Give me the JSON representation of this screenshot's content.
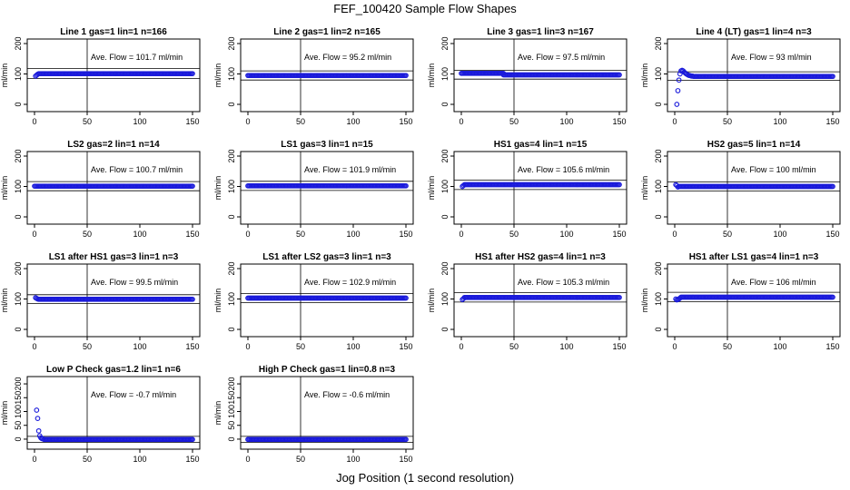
{
  "title": "FEF_100420  Sample Flow Shapes",
  "xlabel": "Jog Position (1 second resolution)",
  "chart_data": [
    {
      "type": "scatter",
      "title": "Line 1 gas=1 lin=1 n=166",
      "ylabel": "ml/min",
      "annotation": "Ave. Flow =  101.7  ml/min",
      "xlim": [
        0,
        150
      ],
      "ylim": [
        0,
        200
      ],
      "xticks": [
        0,
        50,
        100,
        150
      ],
      "yticks": [
        0,
        100,
        200
      ],
      "hlines": [
        85,
        118
      ],
      "vline": 50,
      "series": [
        {
          "x": [
            1,
            2,
            3
          ],
          "y": [
            93,
            96,
            99
          ]
        },
        {
          "x_range": [
            4,
            150
          ],
          "y": 101
        }
      ]
    },
    {
      "type": "scatter",
      "title": "Line 2 gas=1 lin=2 n=165",
      "ylabel": "ml/min",
      "annotation": "Ave. Flow =  95.2  ml/min",
      "xlim": [
        0,
        150
      ],
      "ylim": [
        0,
        200
      ],
      "xticks": [
        0,
        50,
        100,
        150
      ],
      "yticks": [
        0,
        100,
        200
      ],
      "hlines": [
        80,
        110
      ],
      "vline": 50,
      "series": [
        {
          "x_range": [
            0,
            150
          ],
          "y": 95
        }
      ]
    },
    {
      "type": "scatter",
      "title": "Line 3 gas=1 lin=3 n=167",
      "ylabel": "ml/min",
      "annotation": "Ave. Flow =  97.5  ml/min",
      "xlim": [
        0,
        150
      ],
      "ylim": [
        0,
        200
      ],
      "xticks": [
        0,
        50,
        100,
        150
      ],
      "yticks": [
        0,
        100,
        200
      ],
      "hlines": [
        83,
        112
      ],
      "vline": 50,
      "series": [
        {
          "x_range": [
            0,
            40
          ],
          "y": 102
        },
        {
          "x_range": [
            40,
            150
          ],
          "y": 97
        }
      ]
    },
    {
      "type": "scatter",
      "title": "Line 4 (LT) gas=1 lin=4 n=3",
      "ylabel": "ml/min",
      "annotation": "Ave. Flow =  93  ml/min",
      "xlim": [
        0,
        150
      ],
      "ylim": [
        0,
        200
      ],
      "xticks": [
        0,
        50,
        100,
        150
      ],
      "yticks": [
        0,
        100,
        200
      ],
      "hlines": [
        79,
        107
      ],
      "vline": 50,
      "series": [
        {
          "x": [
            2,
            3
          ],
          "y": [
            0,
            45
          ]
        },
        {
          "x": [
            4,
            5,
            6,
            7,
            8,
            9,
            10,
            11,
            12,
            13,
            14,
            15,
            16,
            17,
            18,
            19,
            20
          ],
          "y": [
            80,
            100,
            110,
            112,
            110,
            106,
            103,
            100,
            98,
            96,
            95,
            94,
            93,
            93,
            92,
            92,
            92
          ]
        },
        {
          "x_range": [
            20,
            150
          ],
          "y": 92
        }
      ]
    },
    {
      "type": "scatter",
      "title": "LS2 gas=2 lin=1 n=14",
      "ylabel": "ml/min",
      "annotation": "Ave. Flow =  100.7  ml/min",
      "xlim": [
        0,
        150
      ],
      "ylim": [
        0,
        200
      ],
      "xticks": [
        0,
        50,
        100,
        150
      ],
      "yticks": [
        0,
        100,
        200
      ],
      "hlines": [
        86,
        116
      ],
      "vline": 50,
      "series": [
        {
          "x_range": [
            0,
            150
          ],
          "y": 101
        }
      ]
    },
    {
      "type": "scatter",
      "title": "LS1 gas=3 lin=1 n=15",
      "ylabel": "ml/min",
      "annotation": "Ave. Flow =  101.9  ml/min",
      "xlim": [
        0,
        150
      ],
      "ylim": [
        0,
        200
      ],
      "xticks": [
        0,
        50,
        100,
        150
      ],
      "yticks": [
        0,
        100,
        200
      ],
      "hlines": [
        87,
        117
      ],
      "vline": 50,
      "series": [
        {
          "x_range": [
            0,
            150
          ],
          "y": 102
        }
      ]
    },
    {
      "type": "scatter",
      "title": "HS1 gas=4 lin=1 n=15",
      "ylabel": "ml/min",
      "annotation": "Ave. Flow =  105.6  ml/min",
      "xlim": [
        0,
        150
      ],
      "ylim": [
        0,
        200
      ],
      "xticks": [
        0,
        50,
        100,
        150
      ],
      "yticks": [
        0,
        100,
        200
      ],
      "hlines": [
        90,
        121
      ],
      "vline": 50,
      "series": [
        {
          "x": [
            1,
            2
          ],
          "y": [
            100,
            103
          ]
        },
        {
          "x_range": [
            3,
            150
          ],
          "y": 106
        }
      ]
    },
    {
      "type": "scatter",
      "title": "HS2 gas=5 lin=1 n=14",
      "ylabel": "ml/min",
      "annotation": "Ave. Flow =  100  ml/min",
      "xlim": [
        0,
        150
      ],
      "ylim": [
        0,
        200
      ],
      "xticks": [
        0,
        50,
        100,
        150
      ],
      "yticks": [
        0,
        100,
        200
      ],
      "hlines": [
        85,
        115
      ],
      "vline": 50,
      "series": [
        {
          "x": [
            1,
            2,
            3
          ],
          "y": [
            106,
            103,
            98
          ]
        },
        {
          "x_range": [
            4,
            150
          ],
          "y": 100
        }
      ]
    },
    {
      "type": "scatter",
      "title": "LS1 after HS1 gas=3 lin=1 n=3",
      "ylabel": "ml/min",
      "annotation": "Ave. Flow =  99.5  ml/min",
      "xlim": [
        0,
        150
      ],
      "ylim": [
        0,
        200
      ],
      "xticks": [
        0,
        50,
        100,
        150
      ],
      "yticks": [
        0,
        100,
        200
      ],
      "hlines": [
        85,
        114
      ],
      "vline": 50,
      "series": [
        {
          "x": [
            1,
            2,
            3
          ],
          "y": [
            104,
            102,
            100
          ]
        },
        {
          "x_range": [
            4,
            150
          ],
          "y": 99
        }
      ]
    },
    {
      "type": "scatter",
      "title": "LS1 after LS2 gas=3 lin=1 n=3",
      "ylabel": "ml/min",
      "annotation": "Ave. Flow =  102.9  ml/min",
      "xlim": [
        0,
        150
      ],
      "ylim": [
        0,
        200
      ],
      "xticks": [
        0,
        50,
        100,
        150
      ],
      "yticks": [
        0,
        100,
        200
      ],
      "hlines": [
        88,
        118
      ],
      "vline": 50,
      "series": [
        {
          "x_range": [
            0,
            150
          ],
          "y": 103
        }
      ]
    },
    {
      "type": "scatter",
      "title": "HS1 after HS2 gas=4 lin=1 n=3",
      "ylabel": "ml/min",
      "annotation": "Ave. Flow =  105.3  ml/min",
      "xlim": [
        0,
        150
      ],
      "ylim": [
        0,
        200
      ],
      "xticks": [
        0,
        50,
        100,
        150
      ],
      "yticks": [
        0,
        100,
        200
      ],
      "hlines": [
        90,
        121
      ],
      "vline": 50,
      "series": [
        {
          "x": [
            1,
            2
          ],
          "y": [
            98,
            101
          ]
        },
        {
          "x_range": [
            3,
            150
          ],
          "y": 105
        }
      ]
    },
    {
      "type": "scatter",
      "title": "HS1 after LS1 gas=4 lin=1 n=3",
      "ylabel": "ml/min",
      "annotation": "Ave. Flow =  106  ml/min",
      "xlim": [
        0,
        150
      ],
      "ylim": [
        0,
        200
      ],
      "xticks": [
        0,
        50,
        100,
        150
      ],
      "yticks": [
        0,
        100,
        200
      ],
      "hlines": [
        91,
        122
      ],
      "vline": 50,
      "series": [
        {
          "x": [
            1,
            2,
            3,
            4,
            5
          ],
          "y": [
            100,
            97,
            98,
            100,
            103
          ]
        },
        {
          "x_range": [
            6,
            150
          ],
          "y": 106
        }
      ]
    },
    {
      "type": "scatter",
      "title": "Low P Check gas=1.2 lin=1 n=6",
      "ylabel": "ml/min",
      "annotation": "Ave. Flow =  -0.7  ml/min",
      "xlim": [
        0,
        150
      ],
      "ylim": [
        -10,
        210
      ],
      "xticks": [
        0,
        50,
        100,
        150
      ],
      "yticks": [
        0,
        50,
        100,
        150,
        200
      ],
      "hlines": [
        -12,
        10
      ],
      "vline": 50,
      "series": [
        {
          "x": [
            2,
            3,
            4,
            5,
            6,
            7,
            8
          ],
          "y": [
            105,
            75,
            30,
            12,
            5,
            2,
            1
          ]
        },
        {
          "x_range": [
            9,
            150
          ],
          "y": -1
        }
      ]
    },
    {
      "type": "scatter",
      "title": "High P Check gas=1 lin=0.8 n=3",
      "ylabel": "ml/min",
      "annotation": "Ave. Flow =  -0.6  ml/min",
      "xlim": [
        0,
        150
      ],
      "ylim": [
        -10,
        210
      ],
      "xticks": [
        0,
        50,
        100,
        150
      ],
      "yticks": [
        0,
        50,
        100,
        150,
        200
      ],
      "hlines": [
        -12,
        10
      ],
      "vline": 50,
      "series": [
        {
          "x_range": [
            0,
            150
          ],
          "y": -1
        }
      ]
    }
  ]
}
